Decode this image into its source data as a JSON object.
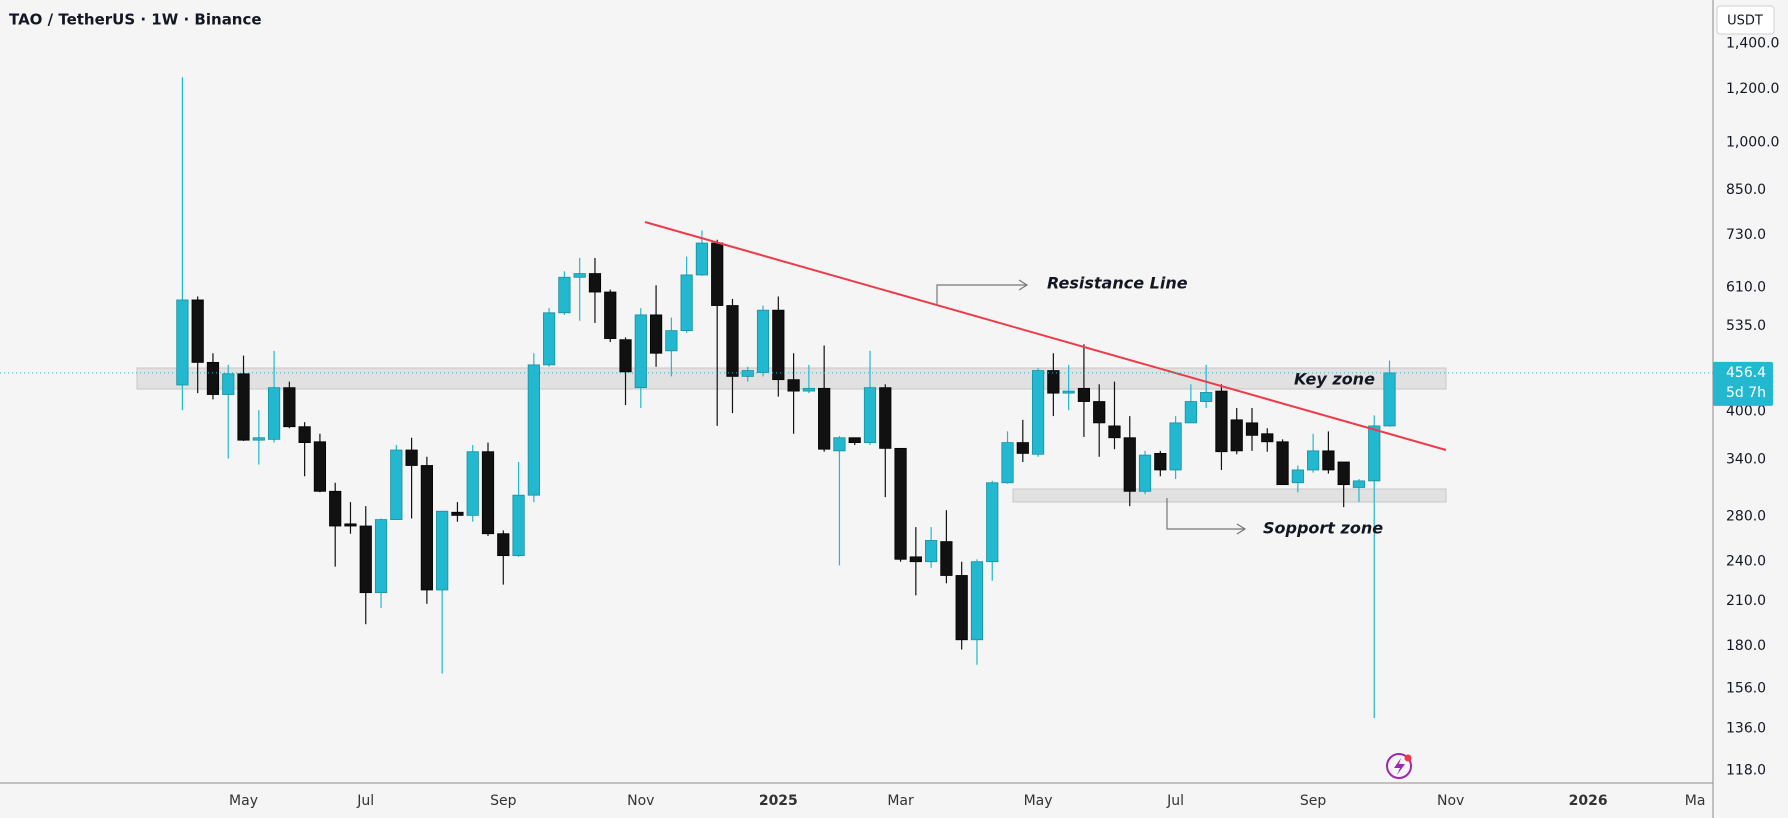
{
  "chart_data": {
    "type": "candlestick",
    "title": "TAO / TetherUS · 1W · Binance",
    "currency": "USDT",
    "annotations": [
      "Resistance Line",
      "Key zone",
      "Sopport zone"
    ],
    "last_price": 456.4,
    "countdown": "5d 7h",
    "log_scale": true,
    "grid": false,
    "up_color": "#22b8cf",
    "down_color": "#111111",
    "ylim": [
      113,
      1624
    ],
    "yticks": [
      {
        "value": 1400,
        "label": "1,400.0"
      },
      {
        "value": 1200,
        "label": "1,200.0"
      },
      {
        "value": 1000,
        "label": "1,000.0"
      },
      {
        "value": 850,
        "label": "850.0"
      },
      {
        "value": 730,
        "label": "730.0"
      },
      {
        "value": 610,
        "label": "610.0"
      },
      {
        "value": 535,
        "label": "535.0"
      },
      {
        "value": 400,
        "label": "400.0"
      },
      {
        "value": 340,
        "label": "340.0"
      },
      {
        "value": 280,
        "label": "280.0"
      },
      {
        "value": 240,
        "label": "240.0"
      },
      {
        "value": 210,
        "label": "210.0"
      },
      {
        "value": 180,
        "label": "180.0"
      },
      {
        "value": 156,
        "label": "156.0"
      },
      {
        "value": 136,
        "label": "136.0"
      },
      {
        "value": 118,
        "label": "118.0"
      }
    ],
    "categories": [
      null,
      null,
      null,
      null,
      "May",
      null,
      null,
      null,
      null,
      null,
      null,
      null,
      "Jul",
      null,
      null,
      null,
      null,
      null,
      null,
      null,
      null,
      "Sep",
      null,
      null,
      null,
      null,
      null,
      null,
      null,
      null,
      "Nov",
      null,
      null,
      null,
      null,
      null,
      null,
      null,
      null,
      "2025",
      null,
      null,
      null,
      null,
      null,
      null,
      null,
      "Mar",
      null,
      null,
      null,
      null,
      null,
      null,
      null,
      null,
      "May",
      null,
      null,
      null,
      null,
      null,
      null,
      null,
      null,
      "Jul",
      null,
      null,
      null,
      null,
      null,
      null,
      null,
      null,
      "Sep",
      null,
      null,
      null,
      null,
      null,
      null,
      null,
      null,
      "Nov",
      null,
      null,
      null,
      null,
      null,
      null,
      null,
      null,
      "2026",
      null,
      null,
      null,
      null,
      null,
      null,
      "Ma"
    ],
    "open": [
      438,
      585,
      473,
      424,
      455,
      363,
      364,
      434,
      380,
      361,
      305,
      273,
      271,
      216,
      277,
      351,
      333,
      218,
      284,
      281,
      349,
      264,
      245,
      301,
      469,
      560,
      632,
      640,
      601,
      511,
      434,
      556,
      492,
      527,
      637,
      710,
      574,
      451,
      457,
      565,
      446,
      429,
      433,
      350,
      366,
      360,
      434,
      353,
      244,
      240,
      257,
      229,
      184,
      240,
      314,
      360,
      346,
      460,
      426,
      433,
      414,
      381,
      366,
      305,
      347,
      328,
      385,
      414,
      429,
      389,
      385,
      371,
      361,
      314,
      328,
      350,
      337,
      309,
      316,
      381,
      null,
      null,
      null,
      null,
      null,
      null,
      null,
      null,
      null,
      null,
      null,
      null,
      null,
      null,
      null,
      null,
      null,
      null,
      null,
      null
    ],
    "high": [
      1248,
      592,
      488,
      469,
      484,
      402,
      492,
      443,
      386,
      371,
      314,
      294,
      290,
      278,
      357,
      366,
      343,
      285,
      294,
      357,
      360,
      267,
      337,
      488,
      569,
      645,
      675,
      675,
      606,
      515,
      569,
      615,
      551,
      678,
      741,
      718,
      587,
      466,
      574,
      592,
      488,
      469,
      501,
      368,
      366,
      492,
      439,
      353,
      270,
      270,
      286,
      240,
      242,
      316,
      374,
      389,
      464,
      488,
      469,
      503,
      439,
      443,
      394,
      350,
      350,
      394,
      439,
      469,
      439,
      405,
      405,
      378,
      364,
      333,
      371,
      374,
      337,
      318,
      395,
      476,
      null,
      null,
      null,
      null,
      null,
      null,
      null,
      null,
      null,
      null,
      null,
      null,
      null,
      null,
      null,
      null,
      null,
      null,
      null,
      null
    ],
    "low": [
      402,
      426,
      417,
      341,
      362,
      334,
      360,
      378,
      321,
      304,
      236,
      264,
      194,
      205,
      277,
      278,
      208,
      164,
      275,
      275,
      262,
      222,
      244,
      294,
      466,
      556,
      545,
      541,
      507,
      409,
      405,
      466,
      451,
      523,
      635,
      381,
      398,
      443,
      451,
      421,
      371,
      426,
      349,
      237,
      357,
      357,
      299,
      240,
      214,
      235,
      223,
      178,
      169,
      225,
      313,
      337,
      343,
      394,
      402,
      367,
      343,
      352,
      290,
      302,
      321,
      318,
      385,
      405,
      328,
      346,
      350,
      349,
      312,
      304,
      325,
      324,
      289,
      294,
      141,
      380,
      null,
      null,
      null,
      null,
      null,
      null,
      null,
      null,
      null,
      null,
      null,
      null,
      null,
      null,
      null,
      null,
      null,
      null,
      null,
      null
    ],
    "close": [
      585,
      473,
      424,
      455,
      363,
      366,
      434,
      380,
      360,
      305,
      271,
      271,
      216,
      277,
      351,
      333,
      218,
      285,
      281,
      349,
      264,
      245,
      301,
      469,
      560,
      632,
      640,
      601,
      513,
      458,
      556,
      488,
      527,
      637,
      710,
      574,
      451,
      460,
      565,
      446,
      429,
      433,
      352,
      366,
      360,
      434,
      353,
      242,
      240,
      258,
      229,
      184,
      240,
      314,
      360,
      347,
      460,
      426,
      429,
      414,
      385,
      366,
      305,
      345,
      328,
      385,
      414,
      427,
      349,
      350,
      369,
      361,
      312,
      328,
      350,
      328,
      312,
      316,
      381,
      456.4,
      null,
      null,
      null,
      null,
      null,
      null,
      null,
      null,
      null,
      null,
      null,
      null,
      null,
      null,
      null,
      null,
      null,
      null,
      null,
      null
    ]
  }
}
